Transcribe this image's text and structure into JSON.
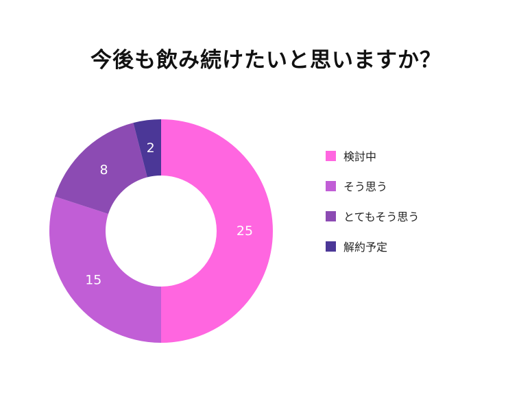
{
  "chart_data": {
    "type": "pie",
    "title": "今後も飲み続けたいと思いますか？",
    "categories": [
      "検討中",
      "そう思う",
      "とてもそう思う",
      "解約予定"
    ],
    "values": [
      25,
      15,
      8,
      2
    ],
    "colors": [
      "#FF66E0",
      "#C15ED6",
      "#8C4BB3",
      "#4B3797"
    ],
    "donut": true,
    "legend_position": "right"
  }
}
